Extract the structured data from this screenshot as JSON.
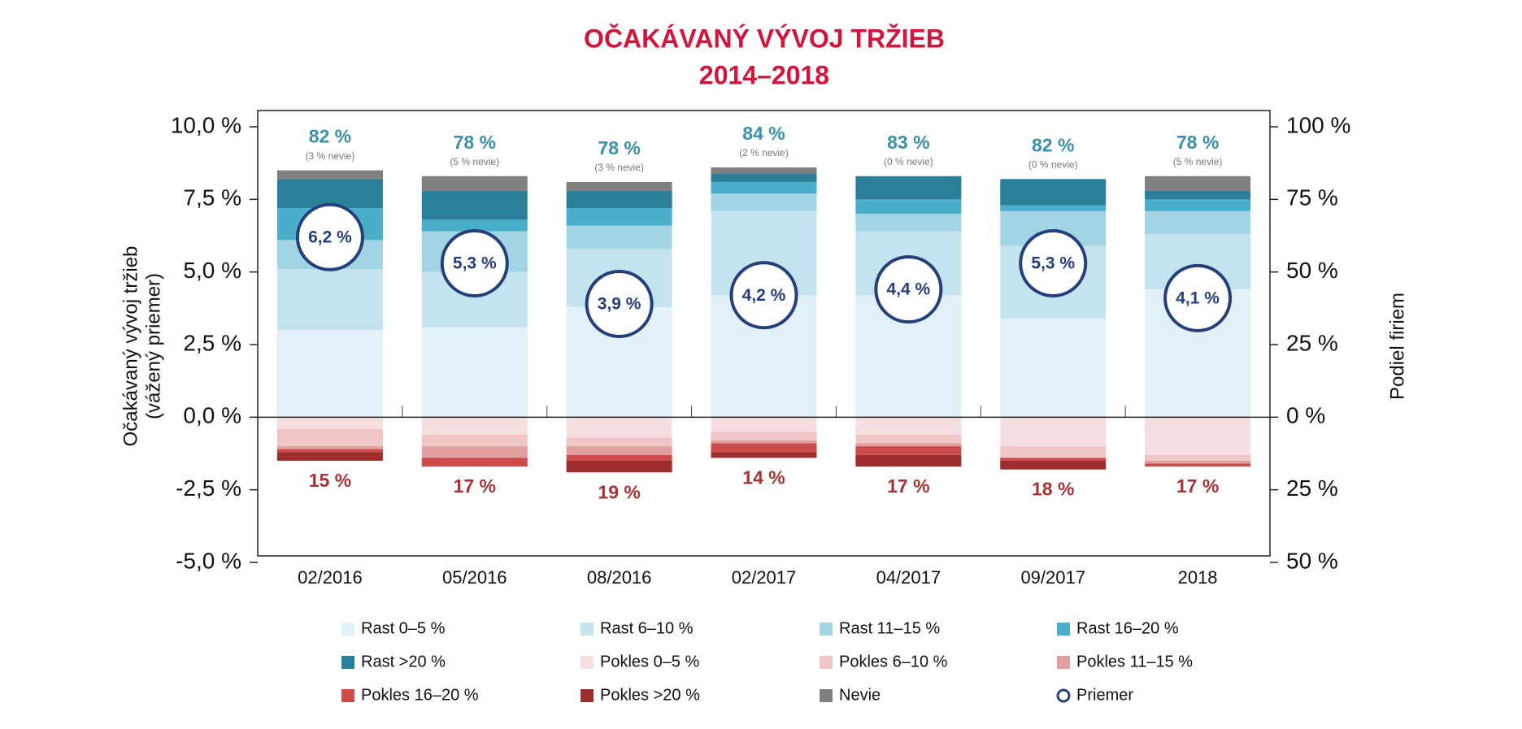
{
  "chart_data": {
    "type": "stacked-bar",
    "title": "OČAKÁVANÝ VÝVOJ TRŽIEB",
    "subtitle": "2014–2018",
    "ylabel": [
      "Očakávaný vývoj tržieb",
      "(vážený priemer)"
    ],
    "y2label": "Podiel firiem",
    "categories": [
      "02/2016",
      "05/2016",
      "08/2016",
      "02/2017",
      "04/2017",
      "09/2017",
      "2018"
    ],
    "ylim": [
      -5,
      10
    ],
    "yticks": [
      {
        "value": -5,
        "label": "-5,0 %"
      },
      {
        "value": -2.5,
        "label": "-2,5 %"
      },
      {
        "value": 0,
        "label": "0,0 %"
      },
      {
        "value": 2.5,
        "label": "2,5 %"
      },
      {
        "value": 5,
        "label": "5,0 %"
      },
      {
        "value": 7.5,
        "label": "7,5 %"
      },
      {
        "value": 10,
        "label": "10,0 %"
      }
    ],
    "y2lim": [
      -50,
      100
    ],
    "y2ticks": [
      {
        "value": -50,
        "label": "50 %"
      },
      {
        "value": -25,
        "label": "25 %"
      },
      {
        "value": 0,
        "label": "0 %"
      },
      {
        "value": 25,
        "label": "25 %"
      },
      {
        "value": 50,
        "label": "50 %"
      },
      {
        "value": 75,
        "label": "75 %"
      },
      {
        "value": 100,
        "label": "100 %"
      }
    ],
    "series": [
      {
        "name": "Rast 0–5 %",
        "color": "#e2f0f8",
        "axis": "y2",
        "values": [
          30,
          31,
          38,
          42,
          42,
          34,
          44
        ]
      },
      {
        "name": "Rast 6–10 %",
        "color": "#c5e3ee",
        "axis": "y2",
        "values": [
          21,
          19,
          20,
          29,
          22,
          25,
          19
        ]
      },
      {
        "name": "Rast 11–15 %",
        "color": "#a3d4e4",
        "axis": "y2",
        "values": [
          10,
          14,
          8,
          6,
          6,
          12,
          8
        ]
      },
      {
        "name": "Rast 16–20 %",
        "color": "#4aaecb",
        "axis": "y2",
        "values": [
          11,
          4,
          6,
          4,
          5,
          2,
          4
        ]
      },
      {
        "name": "Rast >20 %",
        "color": "#2b7f98",
        "axis": "y2",
        "values": [
          10,
          10,
          6,
          3,
          8,
          9,
          3
        ]
      },
      {
        "name": "Pokles 0–5 %",
        "color": "#f6dfe0",
        "axis": "y2",
        "values": [
          -4,
          -6,
          -7,
          -5,
          -6,
          -10,
          -13
        ]
      },
      {
        "name": "Pokles 6–10 %",
        "color": "#efc5c6",
        "axis": "y2",
        "values": [
          -6,
          -4,
          -3,
          -3,
          -3,
          -4,
          -2
        ]
      },
      {
        "name": "Pokles 11–15 %",
        "color": "#e0a09f",
        "axis": "y2",
        "values": [
          -1,
          -4,
          -3,
          -1,
          -1,
          0,
          -1
        ]
      },
      {
        "name": "Pokles 16–20 %",
        "color": "#cd4b4b",
        "axis": "y2",
        "values": [
          -1,
          -3,
          -2,
          -3,
          -3,
          -1,
          -1
        ]
      },
      {
        "name": "Pokles >20 %",
        "color": "#9e2d2d",
        "axis": "y2",
        "values": [
          -3,
          0,
          -4,
          -2,
          -4,
          -3,
          0
        ]
      },
      {
        "name": "Nevie",
        "color": "#808080",
        "axis": "y2",
        "values": [
          3,
          5,
          3,
          2,
          0,
          0,
          5
        ]
      },
      {
        "name": "Priemer",
        "color": "#253f7a",
        "axis": "y",
        "values": [
          6.2,
          5.3,
          3.9,
          4.2,
          4.4,
          5.3,
          4.1
        ],
        "value_labels": [
          "6,2 %",
          "5,3 %",
          "3,9 %",
          "4,2 %",
          "4,4 %",
          "5,3 %",
          "4,1 %"
        ]
      }
    ],
    "growth_labels": [
      "82 %",
      "78 %",
      "78 %",
      "84 %",
      "83 %",
      "82 %",
      "78 %"
    ],
    "nevie_labels": [
      "(3 % nevie)",
      "(5 % nevie)",
      "(3 % nevie)",
      "(2 % nevie)",
      "(0 % nevie)",
      "(0 % nevie)",
      "(5 % nevie)"
    ],
    "decline_labels": [
      "15 %",
      "17 %",
      "19 %",
      "14 %",
      "17 %",
      "18 %",
      "17 %"
    ]
  }
}
